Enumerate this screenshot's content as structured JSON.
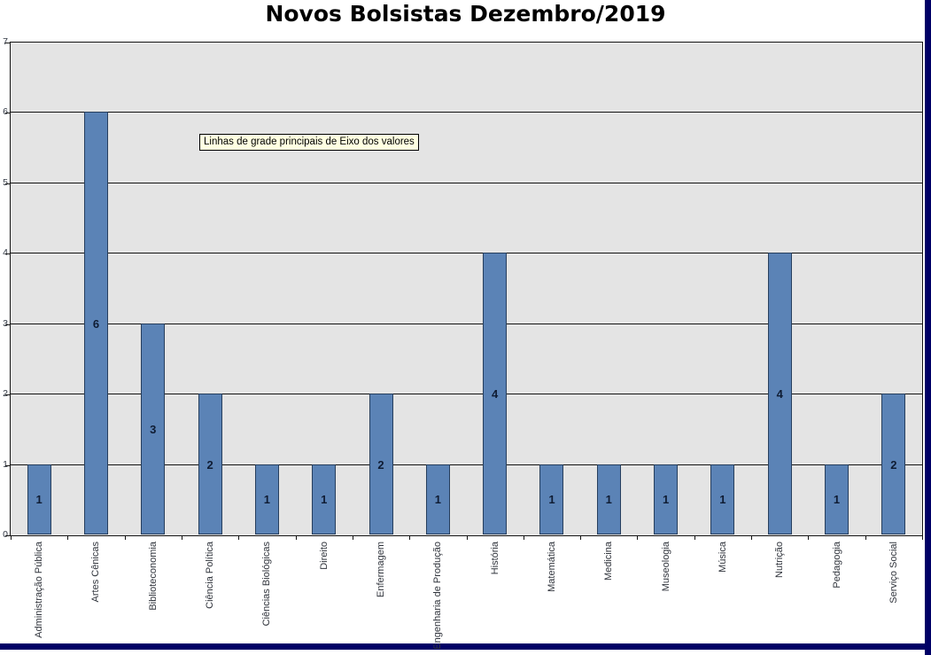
{
  "title": "Novos Bolsistas Dezembro/2019",
  "tooltip": {
    "text": "Linhas de grade principais de Eixo dos valores"
  },
  "colors": {
    "bar_fill": "#5b83b6",
    "bar_border": "#263e5d",
    "plot_background": "#e4e4e4",
    "gridline": "#141414",
    "window_frame": "#000066",
    "tooltip_background": "#ffffe1",
    "title_text": "#000000",
    "data_label_text": "#0f1c33"
  },
  "chart_data": {
    "type": "bar",
    "title": "Novos Bolsistas Dezembro/2019",
    "categories": [
      "Administração Pública",
      "Artes Cênicas",
      "Biblioteconomia",
      "Ciência Política",
      "Ciências Biológicas",
      "Direito",
      "Enfermagem",
      "Engenharia de Produção",
      "História",
      "Matemática",
      "Medicina",
      "Museologia",
      "Música",
      "Nutrição",
      "Pedagogia",
      "Serviço Social"
    ],
    "values": [
      1,
      6,
      3,
      2,
      1,
      1,
      2,
      1,
      4,
      1,
      1,
      1,
      1,
      4,
      1,
      2
    ],
    "xlabel": "",
    "ylabel": "",
    "ylim": [
      0,
      7
    ],
    "yticks": [
      0,
      1,
      2,
      3,
      4,
      5,
      6,
      7
    ],
    "grid": true,
    "legend": "none",
    "data_labels": "inside-center"
  }
}
